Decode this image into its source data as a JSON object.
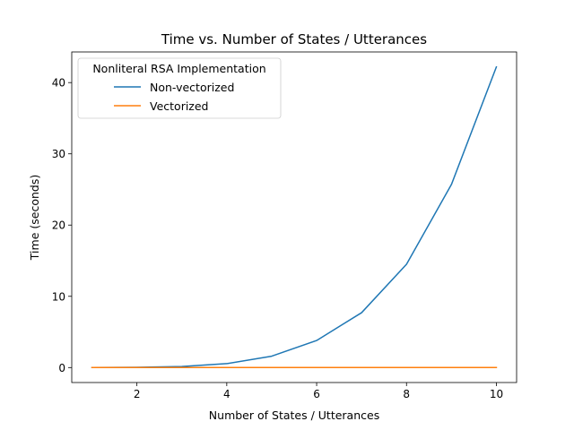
{
  "chart_data": {
    "type": "line",
    "title": "Time vs. Number of States / Utterances",
    "xlabel": "Number of States / Utterances",
    "ylabel": "Time (seconds)",
    "x": [
      1,
      2,
      3,
      4,
      5,
      6,
      7,
      8,
      9,
      10
    ],
    "xlim": [
      0.55,
      10.45
    ],
    "ylim": [
      -2.1,
      44.3
    ],
    "xticks": [
      2,
      4,
      6,
      8,
      10
    ],
    "yticks": [
      0,
      10,
      20,
      30,
      40
    ],
    "grid": false,
    "legend": {
      "title": "Nonliteral RSA Implementation",
      "placement": "top-left"
    },
    "series": [
      {
        "name": "Non-vectorized",
        "color": "#1f77b4",
        "values": [
          0.0,
          0.03,
          0.15,
          0.55,
          1.6,
          3.8,
          7.7,
          14.5,
          25.7,
          42.2
        ]
      },
      {
        "name": "Vectorized",
        "color": "#ff7f0e",
        "values": [
          0.0,
          0.0,
          0.0,
          0.0,
          0.0,
          0.0,
          0.0,
          0.0,
          0.0,
          0.0
        ]
      }
    ]
  }
}
